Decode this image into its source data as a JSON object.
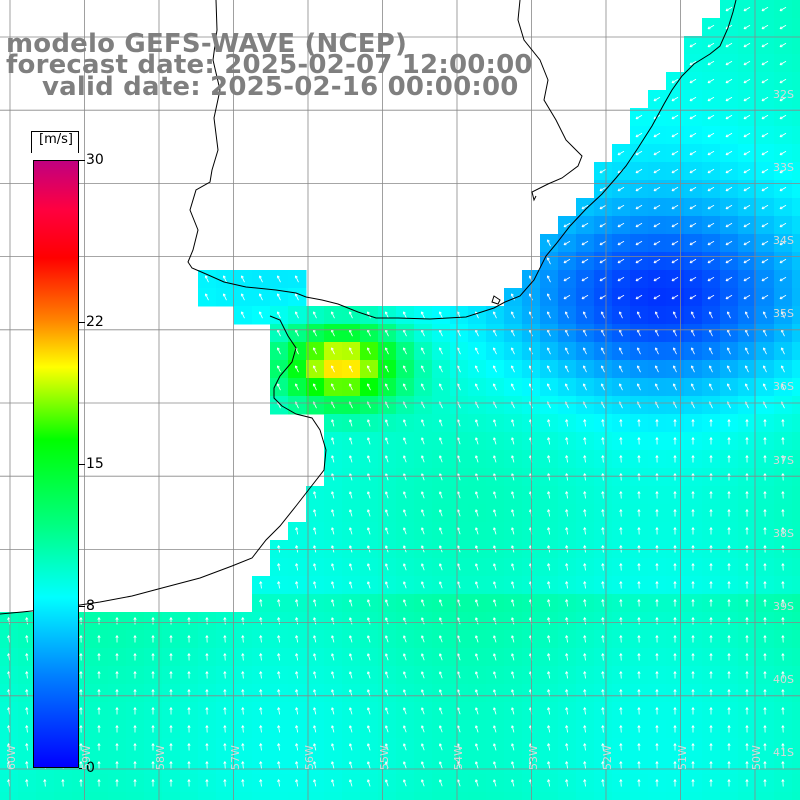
{
  "title": {
    "line1": "modelo GEFS-WAVE (NCEP)",
    "line2": "forecast date: 2025-02-07 12:00:00",
    "line3": "valid date: 2025-02-16 00:00:00"
  },
  "colorbar": {
    "unit": "[m/s]",
    "ticks": [
      {
        "label": "30",
        "value": 30
      },
      {
        "label": "22",
        "value": 22
      },
      {
        "label": "15",
        "value": 15
      },
      {
        "label": "8",
        "value": 8
      },
      {
        "label": "0",
        "value": 0
      }
    ],
    "vmin": 0,
    "vmax": 30
  },
  "lat_labels": [
    "32S",
    "33S",
    "34S",
    "35S",
    "36S",
    "37S",
    "38S",
    "39S",
    "40S",
    "41S"
  ],
  "lon_labels": [
    "60W",
    "59W",
    "58W",
    "57W",
    "56W",
    "55W",
    "54W",
    "53W",
    "52W",
    "51W",
    "50W"
  ],
  "colors": {
    "land": "#ffffff",
    "coast": "#000000",
    "grid": "#888888",
    "title_text": "#7f7f7f",
    "arrow": "#ffffff"
  }
}
